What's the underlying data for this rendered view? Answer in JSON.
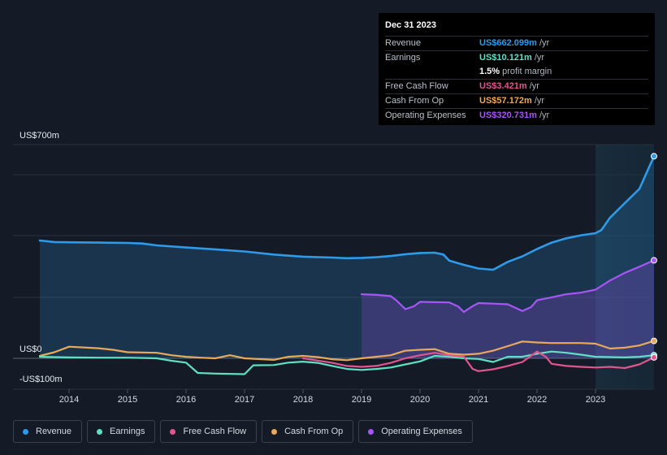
{
  "tooltip": {
    "date": "Dec 31 2023",
    "rows": [
      {
        "label": "Revenue",
        "value": "US$662.099m",
        "unit": "/yr",
        "color": "#2f9ae8"
      },
      {
        "label": "Earnings",
        "value": "US$10.121m",
        "unit": "/yr",
        "color": "#5fe0c4"
      },
      {
        "label": "",
        "value": "1.5%",
        "unit": "profit margin",
        "color": "#ffffff"
      },
      {
        "label": "Free Cash Flow",
        "value": "US$3.421m",
        "unit": "/yr",
        "color": "#e0558e"
      },
      {
        "label": "Cash From Op",
        "value": "US$57.172m",
        "unit": "/yr",
        "color": "#e9a95b"
      },
      {
        "label": "Operating Expenses",
        "value": "US$320.731m",
        "unit": "/yr",
        "color": "#a855f7"
      }
    ]
  },
  "legend": [
    {
      "label": "Revenue",
      "color": "#2f9ae8"
    },
    {
      "label": "Earnings",
      "color": "#5fe0c4"
    },
    {
      "label": "Free Cash Flow",
      "color": "#e0558e"
    },
    {
      "label": "Cash From Op",
      "color": "#e9a95b"
    },
    {
      "label": "Operating Expenses",
      "color": "#a855f7"
    }
  ],
  "chart_data": {
    "type": "line",
    "y_labels": [
      "US$700m",
      "US$0",
      "-US$100m"
    ],
    "ylim": [
      -100,
      700
    ],
    "x_tick_labels": [
      "2014",
      "2015",
      "2016",
      "2017",
      "2018",
      "2019",
      "2020",
      "2021",
      "2022",
      "2023"
    ],
    "xlim": [
      2013.5,
      2024.0
    ],
    "highlight_from": 2023.0,
    "grid": true,
    "series": [
      {
        "name": "Revenue",
        "color": "#2f9ae8",
        "area": true,
        "x": [
          2013.5,
          2013.75,
          2014.0,
          2014.5,
          2015.0,
          2015.25,
          2015.5,
          2016.0,
          2016.5,
          2017.0,
          2017.5,
          2018.0,
          2018.5,
          2018.75,
          2019.0,
          2019.25,
          2019.5,
          2019.75,
          2020.0,
          2020.25,
          2020.4,
          2020.5,
          2020.75,
          2021.0,
          2021.25,
          2021.5,
          2021.75,
          2022.0,
          2022.25,
          2022.5,
          2022.75,
          2023.0,
          2023.1,
          2023.25,
          2023.5,
          2023.75,
          2024.0
        ],
        "values": [
          386,
          381,
          380,
          379,
          378,
          376,
          370,
          363,
          357,
          350,
          340,
          333,
          330,
          328,
          329,
          331,
          335,
          341,
          345,
          346,
          340,
          320,
          306,
          294,
          290,
          316,
          334,
          358,
          379,
          393,
          403,
          410,
          420,
          461,
          508,
          555,
          662
        ]
      },
      {
        "name": "Operating Expenses",
        "color": "#a855f7",
        "area": true,
        "x": [
          2019.0,
          2019.25,
          2019.5,
          2019.6,
          2019.75,
          2019.9,
          2020.0,
          2020.25,
          2020.5,
          2020.65,
          2020.75,
          2020.9,
          2021.0,
          2021.25,
          2021.5,
          2021.75,
          2021.9,
          2022.0,
          2022.25,
          2022.5,
          2022.75,
          2023.0,
          2023.25,
          2023.5,
          2023.75,
          2024.0
        ],
        "values": [
          210,
          208,
          204,
          189,
          161,
          171,
          185,
          184,
          183,
          170,
          152,
          171,
          181,
          179,
          177,
          155,
          168,
          190,
          200,
          210,
          215,
          225,
          255,
          280,
          300,
          321
        ]
      },
      {
        "name": "Cash From Op",
        "color": "#e9a95b",
        "area": false,
        "x": [
          2013.5,
          2013.75,
          2014.0,
          2014.5,
          2014.75,
          2015.0,
          2015.5,
          2015.75,
          2016.0,
          2016.25,
          2016.5,
          2016.75,
          2017.0,
          2017.5,
          2017.75,
          2018.0,
          2018.25,
          2018.5,
          2018.75,
          2019.0,
          2019.25,
          2019.5,
          2019.75,
          2020.0,
          2020.25,
          2020.5,
          2020.75,
          2021.0,
          2021.25,
          2021.5,
          2021.75,
          2022.0,
          2022.25,
          2022.5,
          2022.75,
          2023.0,
          2023.25,
          2023.5,
          2023.75,
          2024.0
        ],
        "values": [
          8,
          20,
          38,
          33,
          28,
          20,
          18,
          10,
          5,
          2,
          0,
          10,
          0,
          -5,
          5,
          8,
          4,
          -3,
          -6,
          0,
          5,
          10,
          25,
          28,
          30,
          15,
          12,
          15,
          25,
          40,
          55,
          52,
          50,
          50,
          50,
          48,
          32,
          35,
          42,
          57
        ]
      },
      {
        "name": "Earnings",
        "color": "#5fe0c4",
        "area": false,
        "x": [
          2013.5,
          2014.0,
          2014.5,
          2015.0,
          2015.5,
          2015.75,
          2016.0,
          2016.2,
          2016.5,
          2017.0,
          2017.15,
          2017.5,
          2017.75,
          2018.0,
          2018.25,
          2018.5,
          2018.75,
          2019.0,
          2019.25,
          2019.5,
          2019.75,
          2020.0,
          2020.25,
          2020.5,
          2020.75,
          2021.0,
          2021.25,
          2021.5,
          2021.75,
          2022.0,
          2022.25,
          2022.5,
          2022.75,
          2023.0,
          2023.25,
          2023.5,
          2023.75,
          2024.0
        ],
        "values": [
          5,
          3,
          2,
          2,
          0,
          -8,
          -14,
          -48,
          -50,
          -52,
          -23,
          -22,
          -14,
          -11,
          -15,
          -25,
          -35,
          -38,
          -35,
          -30,
          -20,
          -10,
          8,
          5,
          0,
          -2,
          -12,
          5,
          5,
          15,
          22,
          18,
          12,
          5,
          4,
          3,
          5,
          10
        ]
      },
      {
        "name": "Free Cash Flow",
        "color": "#e0558e",
        "area": false,
        "x": [
          2018.0,
          2018.5,
          2018.75,
          2019.0,
          2019.25,
          2019.5,
          2019.75,
          2020.0,
          2020.25,
          2020.5,
          2020.75,
          2020.9,
          2021.0,
          2021.25,
          2021.5,
          2021.75,
          2022.0,
          2022.15,
          2022.25,
          2022.5,
          2022.75,
          2023.0,
          2023.25,
          2023.5,
          2023.75,
          2024.0
        ],
        "values": [
          0,
          -15,
          -25,
          -28,
          -25,
          -15,
          0,
          10,
          18,
          10,
          5,
          -35,
          -42,
          -36,
          -25,
          -12,
          22,
          5,
          -18,
          -25,
          -28,
          -30,
          -28,
          -32,
          -20,
          3
        ]
      }
    ]
  }
}
